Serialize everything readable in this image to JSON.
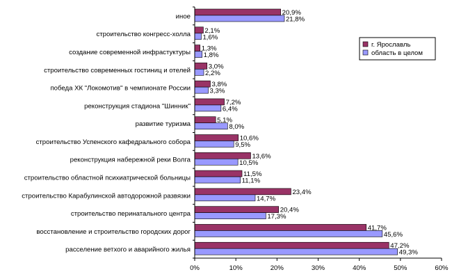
{
  "chart_data": {
    "type": "bar",
    "orientation": "horizontal",
    "categories": [
      "иное",
      "строительство конгресс-холла",
      "создание современной инфрастуктуры",
      "строительство современных гостиниц и отелей",
      "победа ХК \"Локомотив\" в чемпионате России",
      "реконструкция стадиона \"Шинник\"",
      "развитие туризма",
      "строительство Успенского кафедрального собора",
      "реконструкция набережной реки Волга",
      "строительство областной психиатрической больницы",
      "строительство Карабулинской автодорожной развязки",
      "строительство перинатального центра",
      "восстановление и строительство городских дорог",
      "расселение ветхого и аварийного жилья"
    ],
    "series": [
      {
        "name": "г. Ярославль",
        "color": "#993366",
        "values": [
          20.9,
          2.1,
          1.3,
          3.0,
          3.8,
          7.2,
          5.1,
          10.6,
          13.6,
          11.5,
          23.4,
          20.4,
          41.7,
          47.2
        ],
        "labels": [
          "20,9%",
          "2,1%",
          "1,3%",
          "3,0%",
          "3,8%",
          "7,2%",
          "5,1%",
          "10,6%",
          "13,6%",
          "11,5%",
          "23,4%",
          "20,4%",
          "41,7%",
          "47,2%"
        ]
      },
      {
        "name": "область в целом",
        "color": "#9999ff",
        "values": [
          21.8,
          1.6,
          1.8,
          2.2,
          3.3,
          6.4,
          8.0,
          9.5,
          10.5,
          11.1,
          14.7,
          17.3,
          45.6,
          49.3
        ],
        "labels": [
          "21,8%",
          "1,6%",
          "1,8%",
          "2,2%",
          "3,3%",
          "6,4%",
          "8,0%",
          "9,5%",
          "10,5%",
          "11,1%",
          "14,7%",
          "17,3%",
          "45,6%",
          "49,3%"
        ]
      }
    ],
    "xlim": [
      0,
      60
    ],
    "xticks": [
      0,
      10,
      20,
      30,
      40,
      50,
      60
    ],
    "xtick_labels": [
      "0%",
      "10%",
      "20%",
      "30%",
      "40%",
      "50%",
      "60%"
    ],
    "grid": false,
    "legend_position": "right"
  }
}
